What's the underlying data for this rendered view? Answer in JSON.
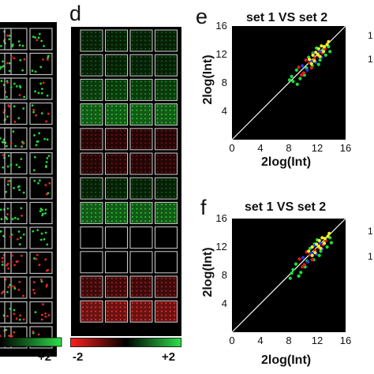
{
  "panels": {
    "d_letter": "d",
    "e_letter": "e",
    "f_letter": "f"
  },
  "colorbar_left": {
    "max_label": "+2"
  },
  "colorbar_d": {
    "min_label": "-2",
    "max_label": "+2"
  },
  "colors": {
    "green": "#19e03a",
    "red": "#e01a1a",
    "yellow": "#f2f22a",
    "blue": "#2838e0",
    "grid_line": "#cfcfcf",
    "background": "#000000"
  },
  "chart_data": [
    {
      "panel": "e",
      "type": "scatter",
      "title": "set 1 VS set 2",
      "xlabel": "2log(Int)",
      "ylabel": "2log(Int)",
      "xlim": [
        0,
        16
      ],
      "ylim": [
        0,
        16
      ],
      "xticks": [
        "0",
        "4",
        "8",
        "12",
        "16"
      ],
      "yticks": [
        "4",
        "8",
        "12",
        "16"
      ],
      "series_colors": [
        "green",
        "red",
        "blue",
        "yellow"
      ],
      "series": [
        {
          "color": "green",
          "points": [
            [
              8.6,
              8.2
            ],
            [
              9.1,
              9.8
            ],
            [
              8.4,
              8.9
            ],
            [
              9.6,
              8.6
            ],
            [
              10.2,
              9.1
            ],
            [
              10.8,
              11.6
            ],
            [
              11.3,
              10.4
            ],
            [
              12.4,
              11.2
            ],
            [
              12.9,
              12.6
            ],
            [
              13.2,
              11.9
            ],
            [
              13.6,
              13.1
            ],
            [
              9.2,
              7.8
            ],
            [
              11.9,
              12.9
            ],
            [
              12.2,
              10.6
            ],
            [
              10.5,
              10.1
            ],
            [
              13.8,
              12.4
            ],
            [
              8.1,
              8.4
            ],
            [
              11.4,
              12.2
            ]
          ]
        },
        {
          "color": "red",
          "points": [
            [
              9.4,
              10.2
            ],
            [
              10.1,
              9.4
            ],
            [
              10.9,
              10.8
            ],
            [
              11.6,
              11.4
            ],
            [
              12.1,
              11.8
            ],
            [
              12.7,
              12.2
            ],
            [
              9.8,
              9.1
            ],
            [
              11.2,
              10.1
            ],
            [
              13.1,
              12.8
            ],
            [
              10.4,
              11.2
            ]
          ]
        },
        {
          "color": "blue",
          "points": [
            [
              10.6,
              9.8
            ],
            [
              11.1,
              11.0
            ],
            [
              11.8,
              10.9
            ],
            [
              12.3,
              12.4
            ],
            [
              9.9,
              10.4
            ],
            [
              12.6,
              11.6
            ],
            [
              11.5,
              12.1
            ]
          ]
        },
        {
          "color": "yellow",
          "points": [
            [
              10.9,
              11.3
            ],
            [
              11.4,
              11.9
            ],
            [
              11.8,
              12.3
            ],
            [
              12.2,
              12.8
            ],
            [
              12.6,
              13.2
            ],
            [
              13.0,
              13.1
            ],
            [
              13.4,
              13.4
            ],
            [
              11.6,
              11.1
            ],
            [
              12.1,
              12.0
            ],
            [
              12.9,
              12.4
            ],
            [
              13.6,
              13.8
            ],
            [
              12.4,
              11.7
            ],
            [
              11.2,
              10.7
            ]
          ]
        }
      ]
    },
    {
      "panel": "f",
      "type": "scatter",
      "title": "set 1 VS set 2",
      "xlabel": "2log(Int)",
      "ylabel": "2log(Int)",
      "xlim": [
        0,
        16
      ],
      "ylim": [
        0,
        16
      ],
      "xticks": [
        "0",
        "4",
        "8",
        "12",
        "16"
      ],
      "yticks": [
        "4",
        "8",
        "12",
        "16"
      ],
      "series_colors": [
        "green",
        "red",
        "blue",
        "yellow"
      ],
      "series": [
        {
          "color": "green",
          "points": [
            [
              8.2,
              7.6
            ],
            [
              9.0,
              9.6
            ],
            [
              8.6,
              8.8
            ],
            [
              9.7,
              8.4
            ],
            [
              10.3,
              9.2
            ],
            [
              11.0,
              11.8
            ],
            [
              11.5,
              10.2
            ],
            [
              12.5,
              11.4
            ],
            [
              13.0,
              12.7
            ],
            [
              13.4,
              12.0
            ],
            [
              13.8,
              13.3
            ],
            [
              9.4,
              7.9
            ],
            [
              12.0,
              13.0
            ],
            [
              12.3,
              10.8
            ],
            [
              10.6,
              10.0
            ],
            [
              14.0,
              12.6
            ],
            [
              8.4,
              8.3
            ],
            [
              11.6,
              12.4
            ]
          ]
        },
        {
          "color": "red",
          "points": [
            [
              9.5,
              10.3
            ],
            [
              10.2,
              9.5
            ],
            [
              11.0,
              10.9
            ],
            [
              11.7,
              11.5
            ],
            [
              12.2,
              11.9
            ],
            [
              12.8,
              12.3
            ],
            [
              9.9,
              9.2
            ],
            [
              11.3,
              10.2
            ],
            [
              13.2,
              12.9
            ],
            [
              10.5,
              11.3
            ]
          ]
        },
        {
          "color": "blue",
          "points": [
            [
              10.7,
              9.9
            ],
            [
              11.2,
              11.1
            ],
            [
              11.9,
              11.0
            ],
            [
              12.4,
              12.5
            ],
            [
              10.0,
              10.5
            ],
            [
              12.7,
              11.7
            ],
            [
              11.6,
              12.2
            ]
          ]
        },
        {
          "color": "yellow",
          "points": [
            [
              10.8,
              11.4
            ],
            [
              11.3,
              12.0
            ],
            [
              11.9,
              12.4
            ],
            [
              12.3,
              12.9
            ],
            [
              12.7,
              13.3
            ],
            [
              13.1,
              13.2
            ],
            [
              13.5,
              13.5
            ],
            [
              11.7,
              11.2
            ],
            [
              12.2,
              12.1
            ],
            [
              13.0,
              12.5
            ],
            [
              13.7,
              13.9
            ],
            [
              12.5,
              11.8
            ],
            [
              11.3,
              10.8
            ]
          ]
        }
      ]
    }
  ],
  "side_ticks": {
    "e_top": "1",
    "e_mid": "1",
    "f_top": "1",
    "f_mid": "1"
  }
}
